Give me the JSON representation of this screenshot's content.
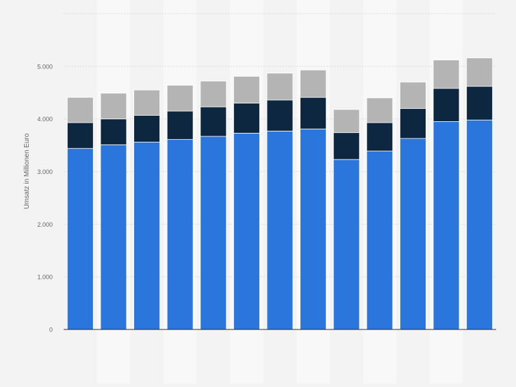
{
  "chart_data": {
    "type": "bar",
    "stacked": true,
    "title": "",
    "xlabel": "",
    "ylabel": "Umsatz in Millionen Euro",
    "ylim": [
      0,
      6000
    ],
    "yticks": [
      0,
      1000,
      2000,
      3000,
      4000,
      5000
    ],
    "ytick_labels": [
      "0",
      "1.000",
      "2.000",
      "3.000",
      "4.000",
      "5.000"
    ],
    "grid": true,
    "legend": "none",
    "categories": [
      "",
      "",
      "",
      "",
      "",
      "",
      "",
      "",
      "",
      "",
      "",
      "",
      ""
    ],
    "series": [
      {
        "color": "#2a76dd",
        "values": [
          3440,
          3510,
          3560,
          3610,
          3670,
          3730,
          3770,
          3810,
          3230,
          3390,
          3630,
          3950,
          3980
        ]
      },
      {
        "color": "#0e2740",
        "values": [
          490,
          490,
          510,
          540,
          560,
          570,
          590,
          600,
          510,
          540,
          570,
          630,
          640
        ]
      },
      {
        "color": "#b4b4b4",
        "values": [
          480,
          490,
          480,
          490,
          490,
          510,
          510,
          520,
          440,
          470,
          500,
          540,
          540
        ]
      }
    ]
  }
}
